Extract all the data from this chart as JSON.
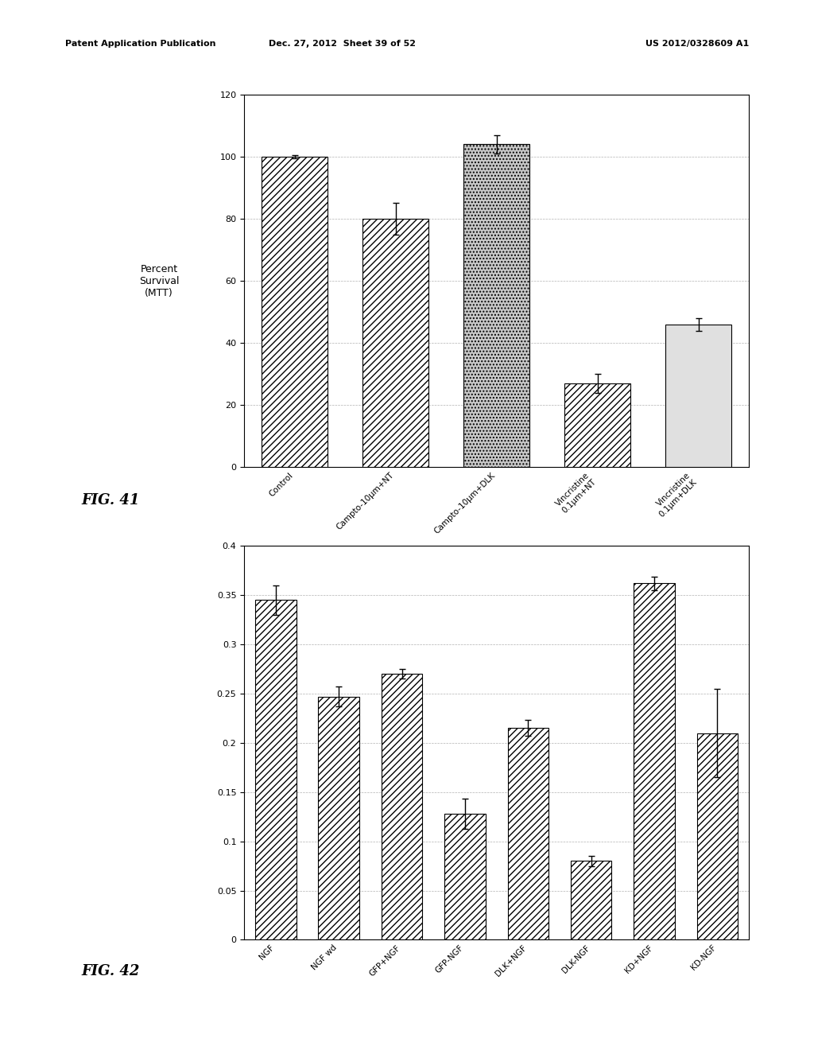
{
  "fig41": {
    "categories": [
      "Control",
      "Campto-10μm+NT",
      "Campto-10μm+DLK",
      "Vincristine\n0.1μm+NT",
      "Vincristine\n0.1μm+DLK"
    ],
    "values": [
      100,
      80,
      104,
      27,
      46
    ],
    "errors": [
      0.5,
      5,
      3,
      3,
      2
    ],
    "face_colors": [
      "white",
      "white",
      "white",
      "white",
      "white"
    ],
    "hatch_patterns": [
      "////",
      "////",
      "....",
      "////",
      ""
    ],
    "light_fills": [
      false,
      false,
      true,
      false,
      true
    ],
    "ylabel": "Percent\nSurvival\n(MTT)",
    "ylim": [
      0,
      120
    ],
    "yticks": [
      0,
      20,
      40,
      60,
      80,
      100,
      120
    ],
    "fig_label": "FIG. 41"
  },
  "fig42": {
    "categories": [
      "NGF",
      "NGF wd",
      "GFP+NGF",
      "GFP-NGF",
      "DLK+NGF",
      "DLK-NGF",
      "KD+NGF",
      "KD-NGF"
    ],
    "values": [
      0.345,
      0.247,
      0.27,
      0.128,
      0.215,
      0.08,
      0.362,
      0.21
    ],
    "errors": [
      0.015,
      0.01,
      0.005,
      0.015,
      0.008,
      0.005,
      0.007,
      0.045
    ],
    "ylim": [
      0,
      0.4
    ],
    "yticks": [
      0,
      0.05,
      0.1,
      0.15,
      0.2,
      0.25,
      0.3,
      0.35,
      0.4
    ],
    "fig_label": "FIG. 42"
  },
  "header_left": "Patent Application Publication",
  "header_mid": "Dec. 27, 2012  Sheet 39 of 52",
  "header_right": "US 2012/0328609 A1",
  "background_color": "#ffffff"
}
